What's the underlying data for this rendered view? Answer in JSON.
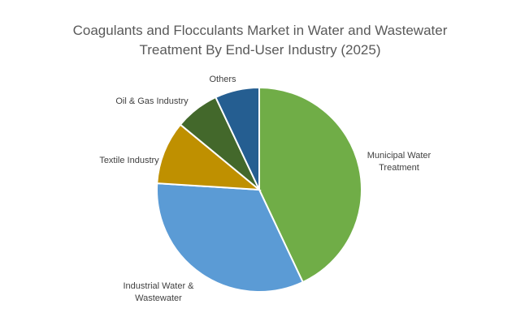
{
  "chart_data": {
    "type": "pie",
    "title": "Coagulants and Flocculants Market in Water and Wastewater Treatment By End-User Industry (2025)",
    "categories": [
      "Municipal Water Treatment",
      "Industrial Water & Wastewater",
      "Textile Industry",
      "Oil & Gas Industry",
      "Others"
    ],
    "values": [
      43,
      33,
      10,
      7,
      7
    ],
    "colors": [
      "#70ad47",
      "#5b9bd5",
      "#bf9000",
      "#43682b",
      "#255e91"
    ]
  }
}
